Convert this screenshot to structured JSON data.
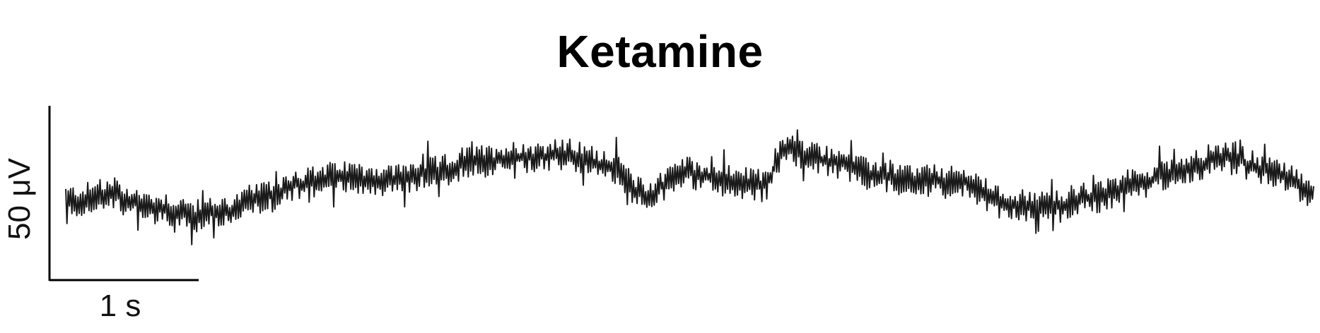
{
  "chart_data": {
    "type": "line",
    "title": "Ketamine",
    "scale_bar": {
      "time_label": "1 s",
      "time_seconds": 1,
      "amplitude_label": "50 μV",
      "amplitude_uV": 50
    },
    "duration_s": 8.5,
    "trace_color": "#1a1a1a",
    "waveform": {
      "description_sample_rate_hz": 120,
      "noise_amplitude_uV": 8,
      "baseline_uV": [
        [
          0.0,
          -5
        ],
        [
          0.3,
          -2
        ],
        [
          0.6,
          -8
        ],
        [
          0.9,
          -12
        ],
        [
          1.1,
          -10
        ],
        [
          1.3,
          -4
        ],
        [
          1.6,
          4
        ],
        [
          1.9,
          8
        ],
        [
          2.2,
          6
        ],
        [
          2.5,
          10
        ],
        [
          2.8,
          16
        ],
        [
          3.1,
          18
        ],
        [
          3.4,
          19
        ],
        [
          3.7,
          14
        ],
        [
          3.95,
          -2
        ],
        [
          4.2,
          10
        ],
        [
          4.5,
          6
        ],
        [
          4.75,
          3
        ],
        [
          4.9,
          22
        ],
        [
          5.2,
          16
        ],
        [
          5.5,
          9
        ],
        [
          5.8,
          6
        ],
        [
          6.1,
          5
        ],
        [
          6.4,
          -6
        ],
        [
          6.7,
          -8
        ],
        [
          7.0,
          -3
        ],
        [
          7.3,
          4
        ],
        [
          7.6,
          12
        ],
        [
          7.9,
          18
        ],
        [
          8.2,
          10
        ],
        [
          8.5,
          1
        ]
      ]
    }
  }
}
